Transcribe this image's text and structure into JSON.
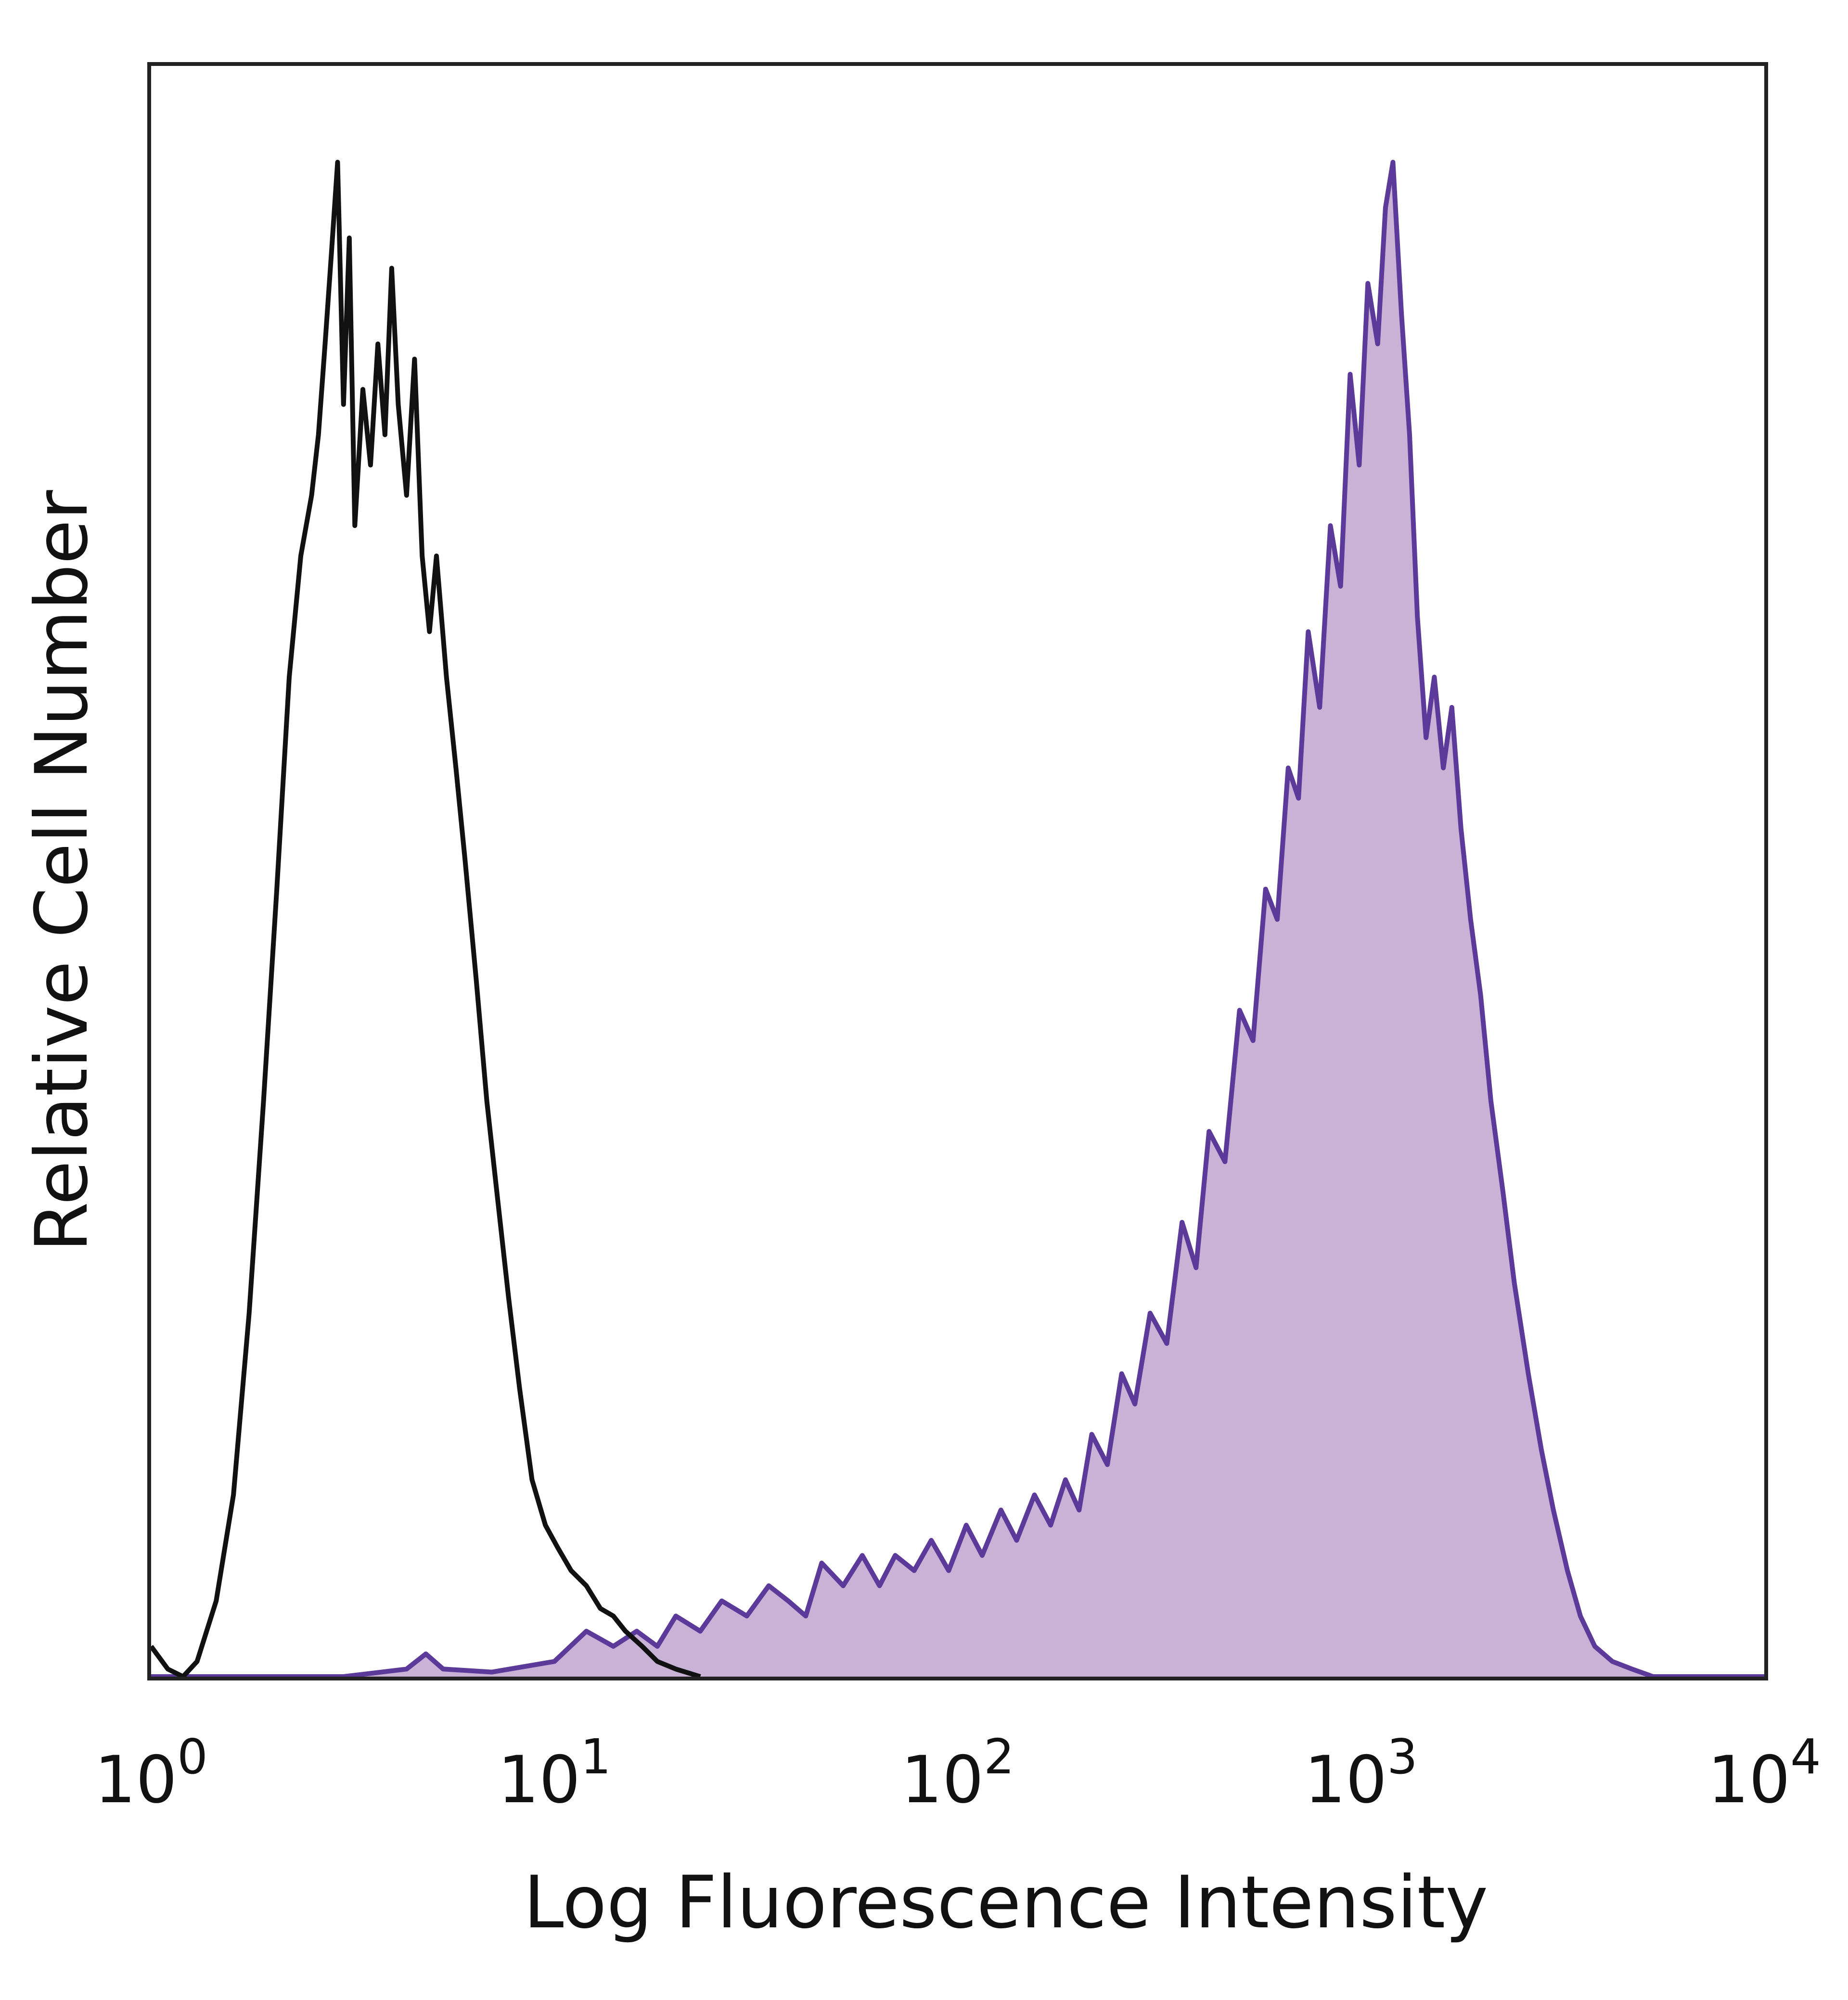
{
  "chart_data": {
    "type": "area",
    "xscale": "log",
    "xlim": [
      1,
      10000
    ],
    "ylim": [
      0,
      1.0
    ],
    "grid": false,
    "legend": "none",
    "xlabel": "Log Fluorescence Intensity",
    "ylabel": "Relative Cell Number",
    "x_ticks": [
      {
        "value": 1,
        "base": "10",
        "exp": "0"
      },
      {
        "value": 10,
        "base": "10",
        "exp": "1"
      },
      {
        "value": 100,
        "base": "10",
        "exp": "2"
      },
      {
        "value": 1000,
        "base": "10",
        "exp": "3"
      },
      {
        "value": 10000,
        "base": "10",
        "exp": "4"
      }
    ],
    "series": [
      {
        "style": "outline",
        "color": "#111111",
        "points": [
          [
            1.0,
            0.02
          ],
          [
            1.1,
            0.005
          ],
          [
            1.2,
            0.0
          ],
          [
            1.3,
            0.01
          ],
          [
            1.45,
            0.05
          ],
          [
            1.6,
            0.12
          ],
          [
            1.75,
            0.24
          ],
          [
            1.9,
            0.38
          ],
          [
            2.05,
            0.52
          ],
          [
            2.2,
            0.66
          ],
          [
            2.35,
            0.74
          ],
          [
            2.5,
            0.78
          ],
          [
            2.6,
            0.82
          ],
          [
            2.7,
            0.88
          ],
          [
            2.8,
            0.94
          ],
          [
            2.9,
            1.0
          ],
          [
            3.0,
            0.84
          ],
          [
            3.1,
            0.95
          ],
          [
            3.2,
            0.76
          ],
          [
            3.35,
            0.85
          ],
          [
            3.5,
            0.8
          ],
          [
            3.65,
            0.88
          ],
          [
            3.8,
            0.82
          ],
          [
            3.95,
            0.93
          ],
          [
            4.1,
            0.84
          ],
          [
            4.3,
            0.78
          ],
          [
            4.5,
            0.87
          ],
          [
            4.7,
            0.74
          ],
          [
            4.9,
            0.69
          ],
          [
            5.1,
            0.74
          ],
          [
            5.4,
            0.66
          ],
          [
            5.7,
            0.6
          ],
          [
            6.0,
            0.54
          ],
          [
            6.4,
            0.46
          ],
          [
            6.8,
            0.38
          ],
          [
            7.2,
            0.32
          ],
          [
            7.7,
            0.25
          ],
          [
            8.2,
            0.19
          ],
          [
            8.8,
            0.13
          ],
          [
            9.5,
            0.1
          ],
          [
            10.2,
            0.085
          ],
          [
            11.0,
            0.07
          ],
          [
            12.0,
            0.06
          ],
          [
            13.0,
            0.045
          ],
          [
            14.0,
            0.04
          ],
          [
            15.0,
            0.03
          ],
          [
            16.5,
            0.02
          ],
          [
            18.0,
            0.01
          ],
          [
            20.0,
            0.005
          ],
          [
            23.0,
            0.0
          ]
        ]
      },
      {
        "style": "filled",
        "color": "#5b3a9a",
        "fill": "#c8b3d6",
        "points": [
          [
            1.0,
            0.0
          ],
          [
            3.0,
            0.0
          ],
          [
            4.3,
            0.005
          ],
          [
            4.8,
            0.015
          ],
          [
            5.3,
            0.005
          ],
          [
            7.0,
            0.003
          ],
          [
            10.0,
            0.01
          ],
          [
            12.0,
            0.03
          ],
          [
            14.0,
            0.02
          ],
          [
            16.0,
            0.03
          ],
          [
            18.0,
            0.02
          ],
          [
            20.0,
            0.04
          ],
          [
            23.0,
            0.03
          ],
          [
            26.0,
            0.05
          ],
          [
            30.0,
            0.04
          ],
          [
            34.0,
            0.06
          ],
          [
            38.0,
            0.05
          ],
          [
            42.0,
            0.04
          ],
          [
            46.0,
            0.075
          ],
          [
            52.0,
            0.06
          ],
          [
            58.0,
            0.08
          ],
          [
            64.0,
            0.06
          ],
          [
            70.0,
            0.08
          ],
          [
            78.0,
            0.07
          ],
          [
            86.0,
            0.09
          ],
          [
            95.0,
            0.07
          ],
          [
            105.0,
            0.1
          ],
          [
            115.0,
            0.08
          ],
          [
            128.0,
            0.11
          ],
          [
            140.0,
            0.09
          ],
          [
            155.0,
            0.12
          ],
          [
            170.0,
            0.1
          ],
          [
            185.0,
            0.13
          ],
          [
            200.0,
            0.11
          ],
          [
            215.0,
            0.16
          ],
          [
            235.0,
            0.14
          ],
          [
            255.0,
            0.2
          ],
          [
            275.0,
            0.18
          ],
          [
            300.0,
            0.24
          ],
          [
            330.0,
            0.22
          ],
          [
            360.0,
            0.3
          ],
          [
            390.0,
            0.27
          ],
          [
            420.0,
            0.36
          ],
          [
            460.0,
            0.34
          ],
          [
            500.0,
            0.44
          ],
          [
            540.0,
            0.42
          ],
          [
            580.0,
            0.52
          ],
          [
            620.0,
            0.5
          ],
          [
            660.0,
            0.6
          ],
          [
            700.0,
            0.58
          ],
          [
            740.0,
            0.69
          ],
          [
            790.0,
            0.64
          ],
          [
            840.0,
            0.76
          ],
          [
            890.0,
            0.72
          ],
          [
            940.0,
            0.86
          ],
          [
            990.0,
            0.8
          ],
          [
            1040.0,
            0.92
          ],
          [
            1100.0,
            0.88
          ],
          [
            1150.0,
            0.97
          ],
          [
            1200.0,
            1.0
          ],
          [
            1260.0,
            0.9
          ],
          [
            1320.0,
            0.82
          ],
          [
            1380.0,
            0.7
          ],
          [
            1450.0,
            0.62
          ],
          [
            1520.0,
            0.66
          ],
          [
            1600.0,
            0.6
          ],
          [
            1680.0,
            0.64
          ],
          [
            1770.0,
            0.56
          ],
          [
            1870.0,
            0.5
          ],
          [
            1980.0,
            0.45
          ],
          [
            2100.0,
            0.38
          ],
          [
            2250.0,
            0.32
          ],
          [
            2400.0,
            0.26
          ],
          [
            2600.0,
            0.2
          ],
          [
            2800.0,
            0.15
          ],
          [
            3000.0,
            0.11
          ],
          [
            3250.0,
            0.07
          ],
          [
            3500.0,
            0.04
          ],
          [
            3800.0,
            0.02
          ],
          [
            4200.0,
            0.01
          ],
          [
            4700.0,
            0.005
          ],
          [
            5300.0,
            0.0
          ],
          [
            10000.0,
            0.0
          ]
        ]
      }
    ]
  }
}
